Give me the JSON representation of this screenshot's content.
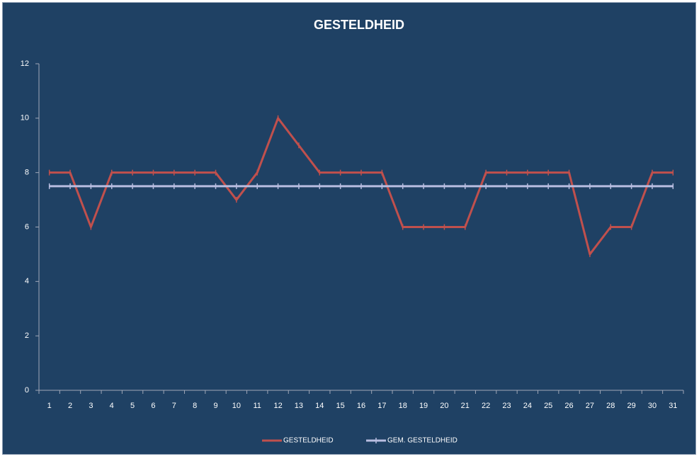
{
  "chart_data": {
    "type": "line",
    "title": "GESTELDHEID",
    "categories": [
      "1",
      "2",
      "3",
      "4",
      "5",
      "6",
      "7",
      "8",
      "9",
      "10",
      "11",
      "12",
      "13",
      "14",
      "15",
      "16",
      "17",
      "18",
      "19",
      "20",
      "21",
      "22",
      "23",
      "24",
      "25",
      "26",
      "27",
      "28",
      "29",
      "30",
      "31"
    ],
    "series": [
      {
        "name": "GESTELDHEID",
        "color": "#c0504d",
        "values": [
          8,
          8,
          6,
          8,
          8,
          8,
          8,
          8,
          8,
          7,
          8,
          10,
          9,
          8,
          8,
          8,
          8,
          6,
          6,
          6,
          6,
          8,
          8,
          8,
          8,
          8,
          5,
          6,
          6,
          8,
          8
        ]
      },
      {
        "name": "GEM. GESTELDHEID",
        "color": "#b8bde0",
        "values": [
          7.5,
          7.5,
          7.5,
          7.5,
          7.5,
          7.5,
          7.5,
          7.5,
          7.5,
          7.5,
          7.5,
          7.5,
          7.5,
          7.5,
          7.5,
          7.5,
          7.5,
          7.5,
          7.5,
          7.5,
          7.5,
          7.5,
          7.5,
          7.5,
          7.5,
          7.5,
          7.5,
          7.5,
          7.5,
          7.5,
          7.5
        ]
      }
    ],
    "ylim": [
      0,
      12
    ],
    "yticks": [
      0,
      2,
      4,
      6,
      8,
      10,
      12
    ],
    "grid": false,
    "legend": "bottom"
  }
}
